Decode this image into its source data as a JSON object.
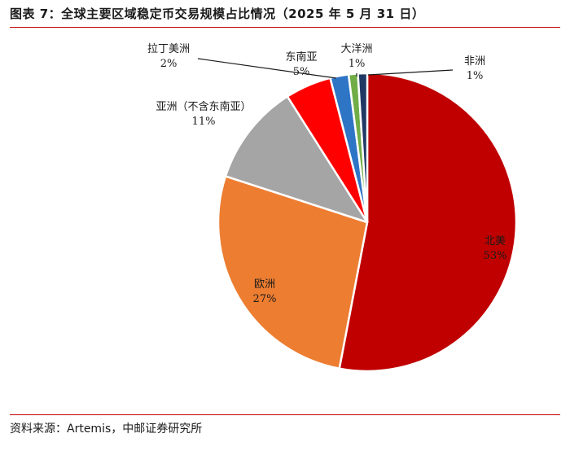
{
  "header": {
    "title": "图表 7：全球主要区域稳定币交易规模占比情况（2025 年 5 月 31 日）"
  },
  "footer": {
    "source": "资料来源：Artemis，中邮证券研究所"
  },
  "chart_data": {
    "type": "pie",
    "title": "图表 7：全球主要区域稳定币交易规模占比情况（2025 年 5 月 31 日）",
    "start": "top",
    "direction": "clockwise",
    "slices": [
      {
        "label": "北美",
        "value_label": "53%",
        "value": 53,
        "color": "#c00000"
      },
      {
        "label": "欧洲",
        "value_label": "27%",
        "value": 27,
        "color": "#ed7d31"
      },
      {
        "label": "亚洲（不含东南亚）",
        "value_label": "11%",
        "value": 11,
        "color": "#a5a5a5"
      },
      {
        "label": "东南亚",
        "value_label": "5%",
        "value": 5,
        "color": "#ff0000"
      },
      {
        "label": "拉丁美洲",
        "value_label": "2%",
        "value": 2,
        "color": "#2e75c6"
      },
      {
        "label": "大洋洲",
        "value_label": "1%",
        "value": 1,
        "color": "#70ad47"
      },
      {
        "label": "非洲",
        "value_label": "1%",
        "value": 1,
        "color": "#203864"
      }
    ]
  }
}
